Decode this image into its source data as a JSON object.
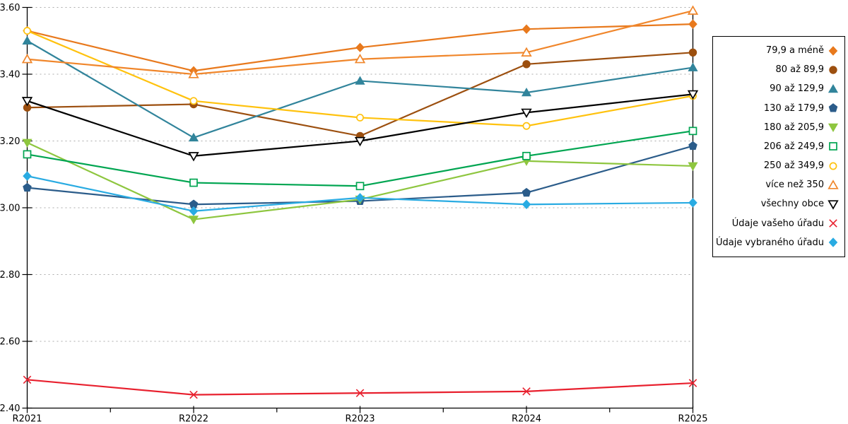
{
  "chart_data": {
    "type": "line",
    "title": "",
    "categories": [
      "R2021",
      "R2022",
      "R2023",
      "R2024",
      "R2025"
    ],
    "y_axis": {
      "min": 2.4,
      "max": 3.6,
      "step": 0.2,
      "tick_labels": [
        "2.40",
        "2.60",
        "2.80",
        "3.00",
        "3.20",
        "3.40",
        "3.60"
      ]
    },
    "grid": {
      "horizontal": "dotted",
      "color": "#ABABAB"
    },
    "legend_position": "right",
    "series": [
      {
        "name": "79,9 a méně",
        "marker": "diamond",
        "filled": true,
        "color": "#E8791D",
        "values": [
          3.53,
          3.41,
          3.48,
          3.535,
          3.55
        ]
      },
      {
        "name": "80 až 89,9",
        "marker": "circle",
        "filled": true,
        "color": "#9C4F0F",
        "values": [
          3.3,
          3.31,
          3.215,
          3.43,
          3.465
        ]
      },
      {
        "name": "90 až 129,9",
        "marker": "triangle-up",
        "filled": true,
        "color": "#31849B",
        "values": [
          3.5,
          3.21,
          3.38,
          3.345,
          3.42
        ]
      },
      {
        "name": "130 až 179,9",
        "marker": "pentagon",
        "filled": true,
        "color": "#2B5C8A",
        "values": [
          3.06,
          3.01,
          3.02,
          3.045,
          3.185
        ]
      },
      {
        "name": "180 až 205,9",
        "marker": "triangle-down",
        "filled": true,
        "color": "#8EC63F",
        "values": [
          3.195,
          2.965,
          3.025,
          3.14,
          3.125
        ]
      },
      {
        "name": "206 až 249,9",
        "marker": "square",
        "filled": false,
        "color": "#00A551",
        "values": [
          3.16,
          3.075,
          3.065,
          3.155,
          3.23
        ]
      },
      {
        "name": "250 až 349,9",
        "marker": "circle",
        "filled": false,
        "color": "#FFC20E",
        "values": [
          3.53,
          3.32,
          3.27,
          3.245,
          3.335
        ]
      },
      {
        "name": "více než 350",
        "marker": "triangle-up",
        "filled": false,
        "color": "#F0862B",
        "values": [
          3.445,
          3.4,
          3.445,
          3.465,
          3.59
        ]
      },
      {
        "name": "všechny obce",
        "marker": "triangle-down",
        "filled": false,
        "color": "#000000",
        "values": [
          3.32,
          3.155,
          3.2,
          3.285,
          3.34
        ]
      },
      {
        "name": "Údaje vašeho úřadu",
        "marker": "x",
        "filled": false,
        "color": "#E8202E",
        "values": [
          2.485,
          2.44,
          2.445,
          2.45,
          2.475
        ]
      },
      {
        "name": "Údaje vybraného úřadu",
        "marker": "diamond",
        "filled": true,
        "color": "#29ABE2",
        "values": [
          3.095,
          2.99,
          3.03,
          3.01,
          3.015
        ]
      }
    ]
  }
}
